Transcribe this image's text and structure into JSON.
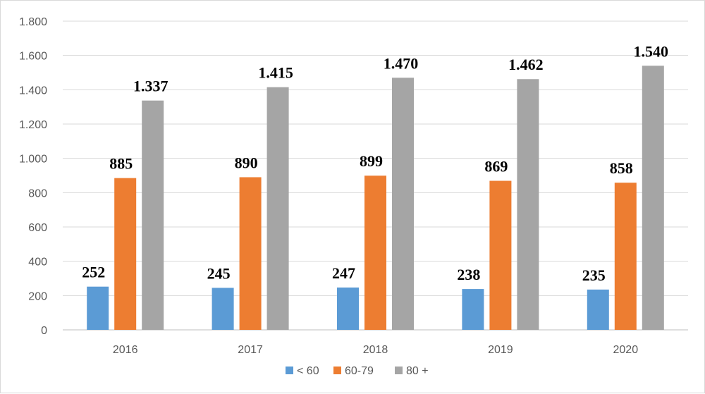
{
  "chart_data": {
    "type": "bar",
    "categories": [
      "2016",
      "2017",
      "2018",
      "2019",
      "2020"
    ],
    "series": [
      {
        "name": "< 60",
        "color": "#5b9bd5",
        "values": [
          252,
          245,
          247,
          238,
          235
        ],
        "labels": [
          "252",
          "245",
          "247",
          "238",
          "235"
        ]
      },
      {
        "name": "60-79",
        "color": "#ed7d31",
        "values": [
          885,
          890,
          899,
          869,
          858
        ],
        "labels": [
          "885",
          "890",
          "899",
          "869",
          "858"
        ]
      },
      {
        "name": "80 +",
        "color": "#a5a5a5",
        "values": [
          1337,
          1415,
          1470,
          1462,
          1540
        ],
        "labels": [
          "1.337",
          "1.415",
          "1.470",
          "1.462",
          "1.540"
        ]
      }
    ],
    "ylim": [
      0,
      1800
    ],
    "yticks": [
      0,
      200,
      400,
      600,
      800,
      1000,
      1200,
      1400,
      1600,
      1800
    ],
    "ytick_labels": [
      "0",
      "200",
      "400",
      "600",
      "800",
      "1.000",
      "1.200",
      "1.400",
      "1.600",
      "1.800"
    ],
    "title": "",
    "xlabel": "",
    "ylabel": "",
    "grid": true,
    "legend_position": "bottom"
  }
}
